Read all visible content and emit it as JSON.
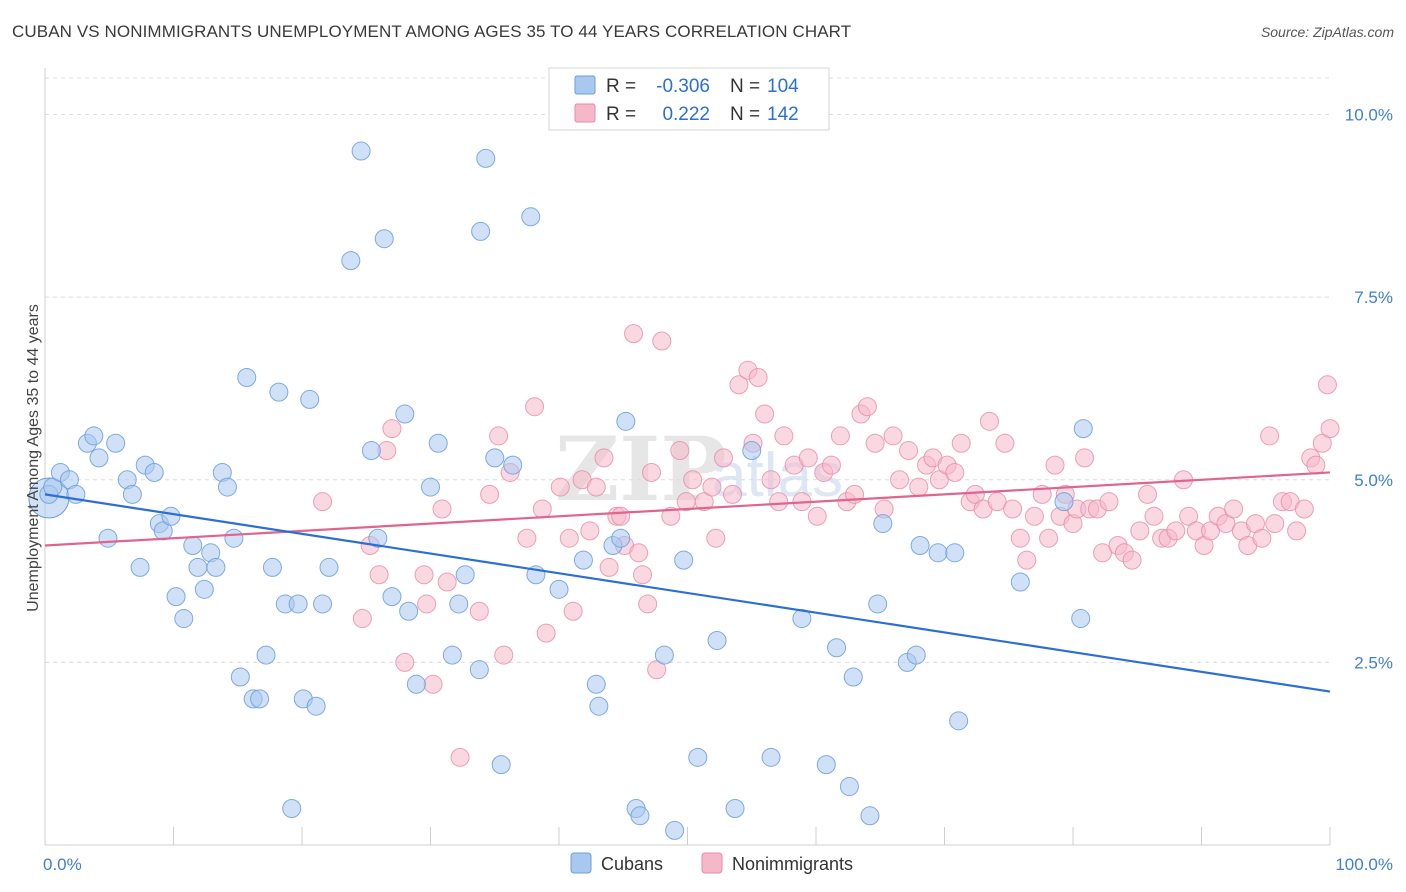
{
  "title": "CUBAN VS NONIMMIGRANTS UNEMPLOYMENT AMONG AGES 35 TO 44 YEARS CORRELATION CHART",
  "source": "Source: ZipAtlas.com",
  "watermark": {
    "zip": "ZIP",
    "atlas": "atlas"
  },
  "colors": {
    "cubans_fill": "#a9c8f0",
    "cubans_stroke": "#6a9edb",
    "cubans_line": "#2c6fd4",
    "nonimm_fill": "#f5b8cb",
    "nonimm_stroke": "#e88aa8",
    "nonimm_line": "#e0648e",
    "tick_text": "#3f7fd2",
    "grid": "#dcdcdc"
  },
  "legend": {
    "r_label": "R =",
    "n_label": "N =",
    "rows": [
      {
        "series": "Cubans",
        "r": "-0.306",
        "n": "104"
      },
      {
        "series": "Nonimmigrants",
        "r": "0.222",
        "n": "142"
      }
    ]
  },
  "chart_data": {
    "type": "scatter",
    "title": "CUBAN VS NONIMMIGRANTS UNEMPLOYMENT AMONG AGES 35 TO 44 YEARS CORRELATION CHART",
    "xlabel": "",
    "ylabel": "Unemployment Among Ages 35 to 44 years",
    "xlim": [
      0,
      100
    ],
    "ylim": [
      0,
      10.5
    ],
    "x_tick_labels": [
      "0.0%",
      "100.0%"
    ],
    "y_ticks": [
      2.5,
      5.0,
      7.5,
      10.0
    ],
    "y_tick_labels": [
      "2.5%",
      "5.0%",
      "7.5%",
      "10.0%"
    ],
    "grid": true,
    "legend_placement": "top-center",
    "series": [
      {
        "name": "Cubans",
        "trend": {
          "x": [
            0,
            100
          ],
          "y": [
            4.8,
            2.1
          ]
        },
        "points": [
          [
            0.3,
            4.8
          ],
          [
            0.6,
            4.9
          ],
          [
            1.2,
            5.1
          ],
          [
            1.9,
            5.0
          ],
          [
            2.4,
            4.8
          ],
          [
            3.3,
            5.5
          ],
          [
            3.8,
            5.6
          ],
          [
            4.2,
            5.3
          ],
          [
            4.9,
            4.2
          ],
          [
            5.5,
            5.5
          ],
          [
            6.4,
            5.0
          ],
          [
            6.8,
            4.8
          ],
          [
            7.4,
            3.8
          ],
          [
            7.8,
            5.2
          ],
          [
            8.5,
            5.1
          ],
          [
            8.9,
            4.4
          ],
          [
            9.2,
            4.3
          ],
          [
            9.8,
            4.5
          ],
          [
            10.2,
            3.4
          ],
          [
            10.8,
            3.1
          ],
          [
            11.5,
            4.1
          ],
          [
            11.9,
            3.8
          ],
          [
            12.4,
            3.5
          ],
          [
            12.9,
            4.0
          ],
          [
            13.3,
            3.8
          ],
          [
            13.8,
            5.1
          ],
          [
            14.2,
            4.9
          ],
          [
            14.7,
            4.2
          ],
          [
            15.2,
            2.3
          ],
          [
            15.7,
            6.4
          ],
          [
            16.2,
            2.0
          ],
          [
            16.7,
            2.0
          ],
          [
            17.2,
            2.6
          ],
          [
            17.7,
            3.8
          ],
          [
            18.2,
            6.2
          ],
          [
            18.7,
            3.3
          ],
          [
            19.2,
            0.5
          ],
          [
            19.7,
            3.3
          ],
          [
            20.1,
            2.0
          ],
          [
            20.6,
            6.1
          ],
          [
            21.1,
            1.9
          ],
          [
            21.6,
            3.3
          ],
          [
            22.1,
            3.8
          ],
          [
            23.8,
            8.0
          ],
          [
            24.6,
            9.5
          ],
          [
            25.4,
            5.4
          ],
          [
            25.9,
            4.2
          ],
          [
            26.4,
            8.3
          ],
          [
            27.0,
            3.4
          ],
          [
            28.0,
            5.9
          ],
          [
            28.3,
            3.2
          ],
          [
            28.9,
            2.2
          ],
          [
            30.0,
            4.9
          ],
          [
            30.6,
            5.5
          ],
          [
            31.7,
            2.6
          ],
          [
            32.2,
            3.3
          ],
          [
            32.7,
            3.7
          ],
          [
            33.8,
            2.4
          ],
          [
            33.9,
            8.4
          ],
          [
            34.3,
            9.4
          ],
          [
            35.0,
            5.3
          ],
          [
            35.5,
            1.1
          ],
          [
            36.4,
            5.2
          ],
          [
            37.8,
            8.6
          ],
          [
            38.2,
            3.7
          ],
          [
            40.0,
            3.5
          ],
          [
            41.9,
            3.9
          ],
          [
            42.9,
            2.2
          ],
          [
            43.1,
            1.9
          ],
          [
            44.2,
            4.1
          ],
          [
            44.8,
            4.2
          ],
          [
            45.2,
            5.8
          ],
          [
            46.0,
            0.5
          ],
          [
            46.3,
            0.4
          ],
          [
            48.2,
            2.6
          ],
          [
            49.0,
            0.2
          ],
          [
            49.7,
            3.9
          ],
          [
            50.8,
            1.2
          ],
          [
            52.3,
            2.8
          ],
          [
            53.7,
            0.5
          ],
          [
            55.0,
            5.4
          ],
          [
            56.5,
            1.2
          ],
          [
            58.9,
            3.1
          ],
          [
            60.8,
            1.1
          ],
          [
            61.6,
            2.7
          ],
          [
            62.6,
            0.8
          ],
          [
            62.9,
            2.3
          ],
          [
            64.2,
            0.4
          ],
          [
            64.8,
            3.3
          ],
          [
            65.2,
            4.4
          ],
          [
            67.1,
            2.5
          ],
          [
            67.8,
            2.6
          ],
          [
            68.1,
            4.1
          ],
          [
            69.5,
            4.0
          ],
          [
            70.8,
            4.0
          ],
          [
            71.1,
            1.7
          ],
          [
            75.9,
            3.6
          ],
          [
            79.3,
            4.7
          ],
          [
            80.6,
            3.1
          ],
          [
            80.8,
            5.7
          ]
        ]
      },
      {
        "name": "Nonimmigrants",
        "trend": {
          "x": [
            0,
            100
          ],
          "y": [
            4.1,
            5.1
          ]
        },
        "points": [
          [
            21.6,
            4.7
          ],
          [
            24.7,
            3.1
          ],
          [
            25.3,
            4.1
          ],
          [
            26.0,
            3.7
          ],
          [
            26.6,
            5.4
          ],
          [
            27.0,
            5.7
          ],
          [
            28.0,
            2.5
          ],
          [
            29.5,
            3.7
          ],
          [
            29.7,
            3.3
          ],
          [
            30.2,
            2.2
          ],
          [
            30.9,
            4.6
          ],
          [
            31.3,
            3.6
          ],
          [
            32.3,
            1.2
          ],
          [
            33.8,
            3.2
          ],
          [
            34.6,
            4.8
          ],
          [
            35.3,
            5.6
          ],
          [
            35.7,
            2.6
          ],
          [
            36.2,
            5.1
          ],
          [
            37.5,
            4.2
          ],
          [
            38.1,
            6.0
          ],
          [
            38.7,
            4.6
          ],
          [
            39.0,
            2.9
          ],
          [
            40.1,
            4.9
          ],
          [
            40.8,
            4.2
          ],
          [
            41.1,
            3.2
          ],
          [
            41.8,
            5.0
          ],
          [
            42.4,
            4.3
          ],
          [
            42.9,
            4.9
          ],
          [
            43.5,
            5.3
          ],
          [
            43.9,
            3.8
          ],
          [
            44.5,
            4.5
          ],
          [
            44.8,
            4.5
          ],
          [
            45.1,
            4.1
          ],
          [
            45.8,
            7.0
          ],
          [
            46.2,
            4.0
          ],
          [
            46.5,
            3.7
          ],
          [
            46.9,
            3.3
          ],
          [
            47.2,
            5.1
          ],
          [
            47.6,
            2.4
          ],
          [
            48.0,
            6.9
          ],
          [
            48.7,
            4.5
          ],
          [
            49.4,
            5.4
          ],
          [
            49.9,
            4.7
          ],
          [
            50.4,
            5.0
          ],
          [
            51.3,
            4.7
          ],
          [
            51.9,
            4.9
          ],
          [
            52.2,
            4.2
          ],
          [
            52.8,
            5.3
          ],
          [
            53.5,
            4.8
          ],
          [
            54.0,
            6.3
          ],
          [
            54.7,
            6.5
          ],
          [
            55.1,
            5.5
          ],
          [
            55.5,
            6.4
          ],
          [
            56.0,
            5.9
          ],
          [
            56.5,
            5.0
          ],
          [
            57.1,
            4.7
          ],
          [
            57.5,
            5.6
          ],
          [
            58.3,
            5.2
          ],
          [
            58.9,
            4.7
          ],
          [
            59.4,
            5.3
          ],
          [
            60.1,
            4.5
          ],
          [
            60.6,
            5.1
          ],
          [
            61.2,
            5.2
          ],
          [
            61.9,
            5.6
          ],
          [
            62.4,
            4.7
          ],
          [
            63.0,
            4.8
          ],
          [
            63.5,
            5.9
          ],
          [
            64.0,
            6.0
          ],
          [
            64.6,
            5.5
          ],
          [
            65.3,
            4.6
          ],
          [
            66.0,
            5.6
          ],
          [
            66.5,
            5.0
          ],
          [
            67.2,
            5.4
          ],
          [
            68.0,
            4.9
          ],
          [
            68.6,
            5.2
          ],
          [
            69.1,
            5.3
          ],
          [
            69.6,
            5.0
          ],
          [
            70.2,
            5.2
          ],
          [
            70.8,
            5.1
          ],
          [
            71.3,
            5.5
          ],
          [
            72.0,
            4.7
          ],
          [
            72.4,
            4.8
          ],
          [
            73.0,
            4.6
          ],
          [
            73.5,
            5.8
          ],
          [
            74.1,
            4.7
          ],
          [
            74.7,
            5.5
          ],
          [
            75.3,
            4.6
          ],
          [
            75.9,
            4.2
          ],
          [
            76.4,
            3.9
          ],
          [
            77.0,
            4.5
          ],
          [
            77.6,
            4.8
          ],
          [
            78.1,
            4.2
          ],
          [
            78.6,
            5.2
          ],
          [
            79.0,
            4.5
          ],
          [
            79.4,
            4.8
          ],
          [
            80.0,
            4.4
          ],
          [
            80.3,
            4.6
          ],
          [
            80.9,
            5.3
          ],
          [
            81.3,
            4.6
          ],
          [
            81.9,
            4.6
          ],
          [
            82.3,
            4.0
          ],
          [
            82.8,
            4.7
          ],
          [
            83.5,
            4.1
          ],
          [
            84.0,
            4.0
          ],
          [
            84.6,
            3.9
          ],
          [
            85.2,
            4.3
          ],
          [
            85.8,
            4.8
          ],
          [
            86.3,
            4.5
          ],
          [
            86.9,
            4.2
          ],
          [
            87.4,
            4.2
          ],
          [
            88.0,
            4.3
          ],
          [
            88.6,
            5.0
          ],
          [
            89.0,
            4.5
          ],
          [
            89.6,
            4.3
          ],
          [
            90.2,
            4.1
          ],
          [
            90.7,
            4.3
          ],
          [
            91.3,
            4.5
          ],
          [
            91.9,
            4.4
          ],
          [
            92.5,
            4.6
          ],
          [
            93.1,
            4.3
          ],
          [
            93.6,
            4.1
          ],
          [
            94.2,
            4.4
          ],
          [
            94.7,
            4.2
          ],
          [
            95.3,
            5.6
          ],
          [
            95.7,
            4.4
          ],
          [
            96.3,
            4.7
          ],
          [
            96.9,
            4.7
          ],
          [
            97.4,
            4.3
          ],
          [
            98.0,
            4.6
          ],
          [
            98.5,
            5.3
          ],
          [
            98.9,
            5.2
          ],
          [
            99.4,
            5.5
          ],
          [
            99.8,
            6.3
          ],
          [
            100.0,
            5.7
          ]
        ]
      }
    ]
  },
  "bottom_legend": [
    {
      "series": "Cubans"
    },
    {
      "series": "Nonimmigrants"
    }
  ]
}
